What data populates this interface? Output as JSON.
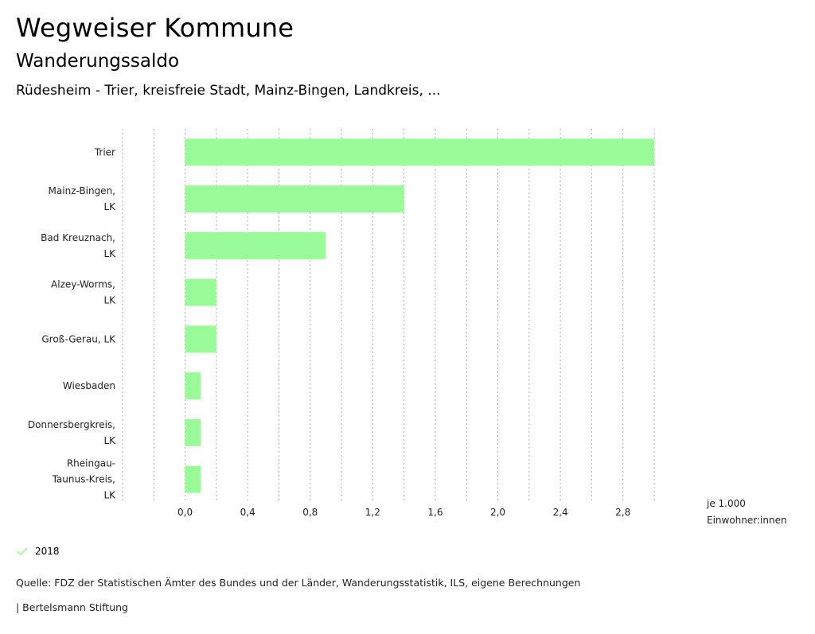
{
  "header": {
    "title": "Wegweiser Kommune",
    "subtitle": "Wanderungssaldo",
    "region": "Rüdesheim - Trier, kreisfreie Stadt, Mainz-Bingen, Landkreis, ..."
  },
  "chart_data": {
    "type": "bar",
    "orientation": "horizontal",
    "categories_lines": [
      [
        "Trier"
      ],
      [
        "Mainz-Bingen,",
        "LK"
      ],
      [
        "Bad Kreuznach,",
        "LK"
      ],
      [
        "Alzey-Worms,",
        "LK"
      ],
      [
        "Groß-Gerau, LK"
      ],
      [
        "Wiesbaden"
      ],
      [
        "Donnersbergkreis,",
        "LK"
      ],
      [
        "Rheingau-",
        "Taunus-Kreis,",
        "LK"
      ]
    ],
    "series": [
      {
        "name": "2018",
        "color": "#98fb98",
        "values": [
          3.0,
          1.4,
          0.9,
          0.2,
          0.2,
          0.1,
          0.1,
          0.1
        ]
      }
    ],
    "xlim": [
      -0.4,
      3.0
    ],
    "ticks": [
      0.0,
      0.4,
      0.8,
      1.2,
      1.6,
      2.0,
      2.4,
      2.8
    ],
    "tick_labels": [
      "0,0",
      "0,4",
      "0,8",
      "1,2",
      "1,6",
      "2,0",
      "2,4",
      "2,8"
    ],
    "unit_lines": [
      "je 1.000",
      "Einwohner:innen"
    ],
    "grid": true
  },
  "legend": {
    "label": "2018",
    "color": "#98fb98"
  },
  "footer": {
    "source": "Quelle: FDZ der Statistischen Ämter des Bundes und der Länder, Wanderungsstatistik, ILS, eigene Berechnungen",
    "brand": "| Bertelsmann Stiftung"
  }
}
